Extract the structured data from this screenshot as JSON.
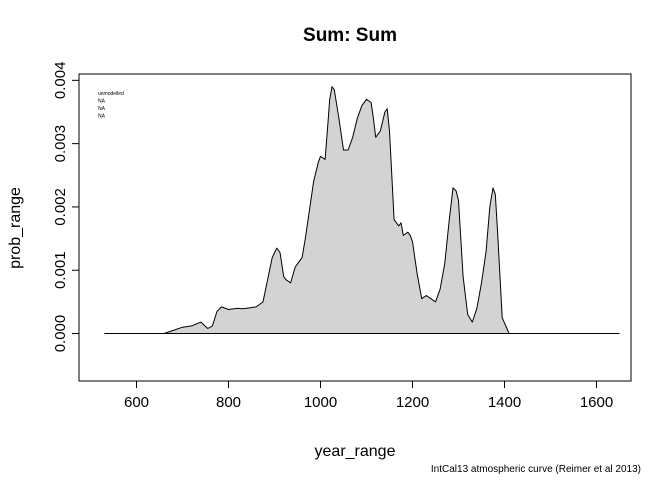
{
  "chart_data": {
    "type": "area",
    "title": "Sum:  Sum",
    "xlabel": "year_range",
    "ylabel": "prob_range",
    "credit": "IntCal13 atmospheric curve (Reimer et al 2013)",
    "legend": [
      "unmodelled",
      "NA",
      "NA",
      "NA"
    ],
    "legend_position": "top-left",
    "xlim": [
      475,
      1675
    ],
    "ylim": [
      -0.00075,
      0.0041
    ],
    "xticks": [
      600,
      800,
      1000,
      1200,
      1400,
      1600
    ],
    "yticks": [
      0.0,
      0.001,
      0.002,
      0.003,
      0.004
    ],
    "ytick_labels": [
      "0.000",
      "0.001",
      "0.002",
      "0.003",
      "0.004"
    ],
    "baseline_range": [
      530,
      1650
    ],
    "fill_color": "#d3d3d3",
    "grid": false,
    "series": [
      {
        "x": [
          660,
          680,
          700,
          720,
          740,
          755,
          765,
          775,
          785,
          800,
          820,
          830,
          840,
          860,
          875,
          885,
          895,
          905,
          912,
          920,
          925,
          935,
          945,
          952,
          960,
          967,
          975,
          985,
          995,
          1000,
          1010,
          1017,
          1020,
          1025,
          1030,
          1040,
          1050,
          1060,
          1070,
          1080,
          1090,
          1100,
          1110,
          1115,
          1120,
          1130,
          1140,
          1145,
          1150,
          1160,
          1170,
          1175,
          1180,
          1190,
          1195,
          1200,
          1210,
          1220,
          1230,
          1240,
          1250,
          1260,
          1270,
          1280,
          1288,
          1295,
          1300,
          1310,
          1320,
          1330,
          1340,
          1350,
          1360,
          1368,
          1375,
          1380,
          1385,
          1395,
          1410
        ],
        "y": [
          0.0,
          5e-05,
          0.0001,
          0.00012,
          0.00018,
          8e-05,
          0.00012,
          0.00035,
          0.00042,
          0.00038,
          0.0004,
          0.00039,
          0.0004,
          0.00042,
          0.0005,
          0.00085,
          0.0012,
          0.00135,
          0.00128,
          0.0009,
          0.00085,
          0.0008,
          0.00105,
          0.00112,
          0.0012,
          0.0015,
          0.0019,
          0.0024,
          0.0027,
          0.0028,
          0.00275,
          0.0034,
          0.0037,
          0.0039,
          0.00385,
          0.0034,
          0.0029,
          0.0029,
          0.0031,
          0.0034,
          0.0036,
          0.0037,
          0.00365,
          0.0034,
          0.0031,
          0.0032,
          0.0035,
          0.00355,
          0.0032,
          0.0018,
          0.0017,
          0.00175,
          0.00155,
          0.0016,
          0.00155,
          0.00145,
          0.00095,
          0.00055,
          0.0006,
          0.00055,
          0.0005,
          0.0007,
          0.0011,
          0.0018,
          0.0023,
          0.00225,
          0.0021,
          0.0009,
          0.0003,
          0.00018,
          0.0004,
          0.0008,
          0.0013,
          0.002,
          0.0023,
          0.0022,
          0.0016,
          0.00025,
          0.0
        ]
      }
    ]
  }
}
